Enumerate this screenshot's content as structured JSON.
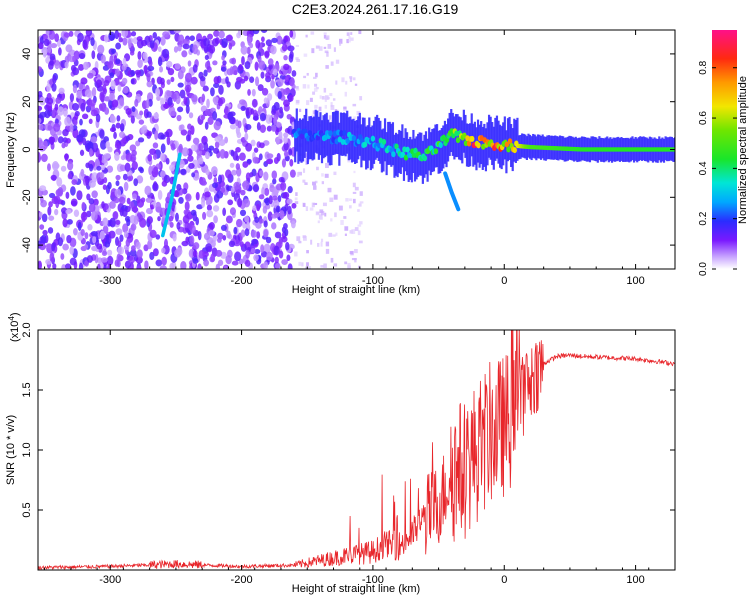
{
  "title": "C2E3.2024.261.17.16.G19",
  "chart_data": [
    {
      "type": "heatmap",
      "title": "C2E3.2024.261.17.16.G19",
      "xlabel": "Height of straight line (km)",
      "ylabel": "Frequency (Hz)",
      "xlim": [
        -355,
        130
      ],
      "ylim": [
        -50,
        50
      ],
      "xticks": [
        -300,
        -200,
        -100,
        0,
        100
      ],
      "yticks": [
        -40,
        -20,
        0,
        20,
        40
      ],
      "colorbar": {
        "label": "Normalized spectral amplitude",
        "range": [
          0.0,
          0.95
        ],
        "ticks": [
          0.0,
          0.2,
          0.4,
          0.6,
          0.8
        ]
      },
      "features": [
        {
          "name": "noise region",
          "x_range": [
            -355,
            -160
          ],
          "freq_range": [
            -50,
            50
          ],
          "amplitude": 0.1
        },
        {
          "name": "sparse noise",
          "x_range": [
            -160,
            -110
          ],
          "freq_range": [
            -50,
            50
          ],
          "amplitude": 0.03
        },
        {
          "name": "streak",
          "x": [
            -260,
            -253,
            -247
          ],
          "freq": [
            -36,
            -20,
            -2
          ],
          "amplitude": 0.3
        },
        {
          "name": "main signal",
          "x": [
            -160,
            -120,
            -100,
            -80,
            -60,
            -40,
            -20,
            0,
            20,
            60,
            100,
            130
          ],
          "freq": [
            6,
            5,
            3,
            -1,
            -3,
            6,
            3,
            2,
            1,
            0,
            0,
            0
          ],
          "amplitude": [
            0.25,
            0.3,
            0.35,
            0.4,
            0.45,
            0.55,
            0.9,
            0.8,
            0.5,
            0.45,
            0.45,
            0.45
          ]
        },
        {
          "name": "falling branch",
          "x": [
            -45,
            -40,
            -35
          ],
          "freq": [
            -10,
            -18,
            -25
          ],
          "amplitude": 0.25
        }
      ]
    },
    {
      "type": "line",
      "xlabel": "Height of straight line (km)",
      "ylabel": "SNR (10 * v/v)",
      "y_multiplier": "(x10^4)",
      "y_multiplier_base": "(x10",
      "y_multiplier_exp": "4",
      "y_multiplier_close": ")",
      "xlim": [
        -355,
        130
      ],
      "ylim": [
        0,
        2.0
      ],
      "xticks": [
        -300,
        -200,
        -100,
        0,
        100
      ],
      "yticks": [
        0.5,
        1.0,
        1.5,
        2.0
      ],
      "series": [
        {
          "name": "SNR",
          "color": "#e8262b",
          "x": [
            -355,
            -300,
            -250,
            -200,
            -160,
            -140,
            -120,
            -100,
            -90,
            -80,
            -70,
            -60,
            -50,
            -40,
            -30,
            -20,
            -10,
            0,
            10,
            20,
            30,
            40,
            50,
            60,
            80,
            100,
            130
          ],
          "y": [
            0.02,
            0.03,
            0.05,
            0.03,
            0.04,
            0.08,
            0.12,
            0.15,
            0.22,
            0.2,
            0.3,
            0.45,
            0.55,
            0.8,
            0.85,
            1.0,
            1.15,
            1.2,
            1.35,
            1.6,
            1.72,
            1.78,
            1.79,
            1.78,
            1.77,
            1.76,
            1.72
          ]
        }
      ]
    }
  ]
}
